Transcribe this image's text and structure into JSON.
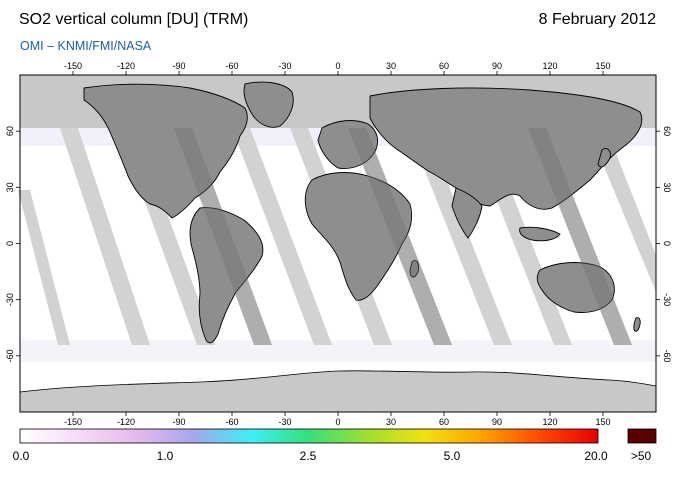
{
  "header": {
    "title": "SO2 vertical column [DU] (TRM)",
    "date": "8 February 2012",
    "credit": "OMI  –  KNMI/FMI/NASA"
  },
  "map": {
    "projection": "equirectangular",
    "lon_ticks": [
      "-150",
      "-120",
      "-90",
      "-60",
      "-30",
      "0",
      "30",
      "60",
      "90",
      "120",
      "150"
    ],
    "lat_ticks": [
      "60",
      "30",
      "0",
      "-30",
      "-60"
    ],
    "colors": {
      "background": "#ffffff",
      "no_data": "#c8c8c8",
      "overlap_swath": "#a6a6a6",
      "land_overlap": "#8a8a8a",
      "coastline": "#000000"
    }
  },
  "colorbar": {
    "labels": [
      "0.0",
      "1.0",
      "2.5",
      "5.0",
      "20.0",
      ">50"
    ],
    "colors": [
      "#ffffff",
      "#f6dcf6",
      "#e7b9ee",
      "#a7a6ec",
      "#3cf0f6",
      "#35e07a",
      "#9ee02f",
      "#f0e20b",
      "#ffa200",
      "#ff4800",
      "#e60000"
    ],
    "overflow_color": "#5a0000"
  }
}
